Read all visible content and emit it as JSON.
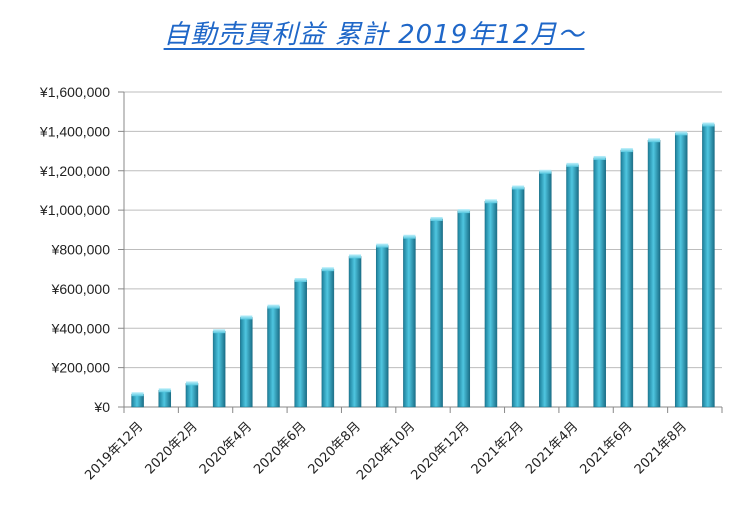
{
  "title": "自動売買利益 累計 2019年12月～",
  "chart_data": {
    "type": "bar",
    "title": "自動売買利益 累計 2019年12月～",
    "xlabel": "",
    "ylabel": "",
    "ylim": [
      0,
      1600000
    ],
    "yticks": [
      "¥0",
      "¥200,000",
      "¥400,000",
      "¥600,000",
      "¥800,000",
      "¥1,000,000",
      "¥1,200,000",
      "¥1,400,000",
      "¥1,600,000"
    ],
    "grid": true,
    "categories": [
      "2019年12月",
      "2020年1月",
      "2020年2月",
      "2020年3月",
      "2020年4月",
      "2020年5月",
      "2020年6月",
      "2020年7月",
      "2020年8月",
      "2020年9月",
      "2020年10月",
      "2020年11月",
      "2020年12月",
      "2021年1月",
      "2021年2月",
      "2021年3月",
      "2021年4月",
      "2021年5月",
      "2021年6月",
      "2021年7月",
      "2021年8月",
      "2021年9月"
    ],
    "visible_tick_labels": [
      "2019年12月",
      "2020年2月",
      "2020年4月",
      "2020年6月",
      "2020年8月",
      "2020年10月",
      "2020年12月",
      "2021年2月",
      "2021年4月",
      "2021年6月",
      "2021年8月"
    ],
    "values": [
      65000,
      85000,
      120000,
      385000,
      455000,
      510000,
      645000,
      700000,
      765000,
      820000,
      865000,
      955000,
      995000,
      1045000,
      1115000,
      1195000,
      1230000,
      1265000,
      1305000,
      1355000,
      1390000,
      1435000
    ],
    "bar_color": "#2a9ab8"
  }
}
